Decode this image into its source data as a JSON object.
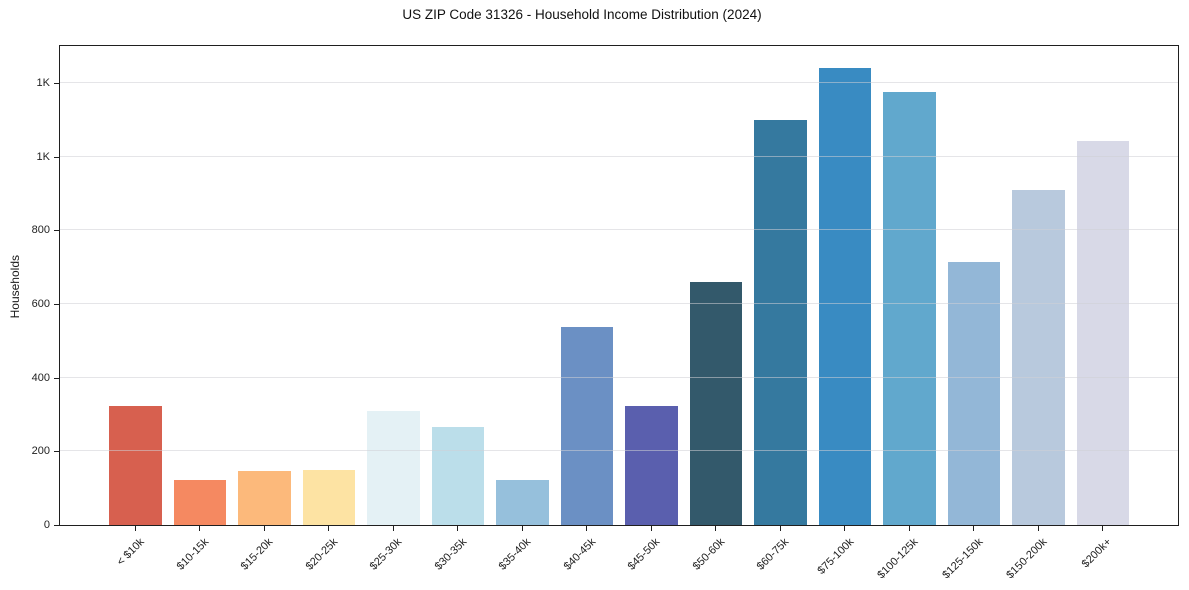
{
  "chart_data": {
    "type": "bar",
    "title": "US ZIP Code 31326 - Household Income Distribution (2024)",
    "xlabel": "",
    "ylabel": "Households",
    "categories": [
      "< $10k",
      "$10-15k",
      "$15-20k",
      "$20-25k",
      "$25-30k",
      "$30-35k",
      "$35-40k",
      "$40-45k",
      "$45-50k",
      "$50-60k",
      "$60-75k",
      "$75-100k",
      "$100-125k",
      "$125-150k",
      "$150-200k",
      "$200k+"
    ],
    "values": [
      322,
      121,
      146,
      148,
      310,
      265,
      121,
      537,
      322,
      659,
      1100,
      1240,
      1175,
      713,
      910,
      1043
    ],
    "bar_colors": [
      "#d7604f",
      "#f58961",
      "#fcb97b",
      "#fde3a3",
      "#e4f1f5",
      "#bbdeea",
      "#96c0dc",
      "#6b90c4",
      "#5a5fae",
      "#33596b",
      "#35799f",
      "#398bc2",
      "#61a8cd",
      "#93b7d7",
      "#b8c9dd",
      "#d8d9e7"
    ],
    "ylim": [
      0,
      1300
    ],
    "yticks": {
      "values": [
        0,
        200,
        400,
        600,
        800,
        1000,
        1200
      ],
      "labels": [
        "0",
        "200",
        "400",
        "600",
        "800",
        "1K",
        "1K"
      ]
    },
    "grid": true,
    "grid_above_bars": true,
    "legend": "none"
  }
}
